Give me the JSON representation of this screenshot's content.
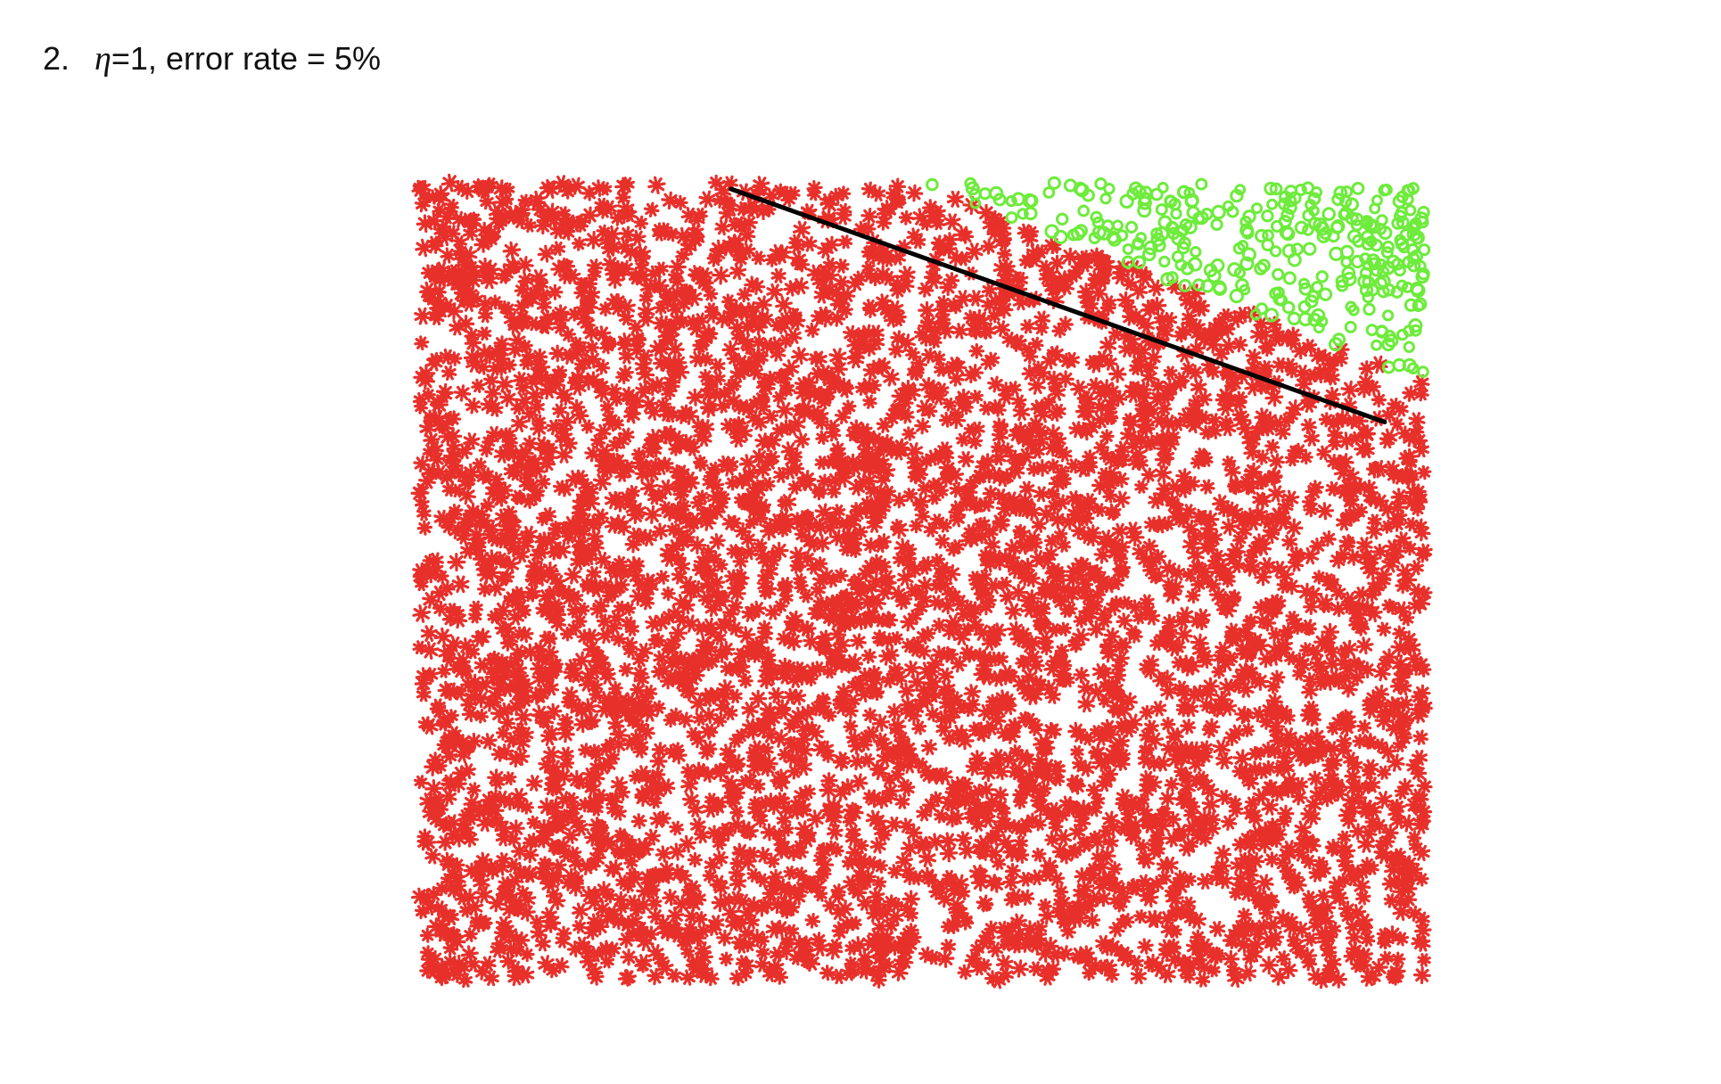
{
  "heading": {
    "number": "2.",
    "eta_symbol": "η",
    "text": "=1, error rate = 5%"
  },
  "colors": {
    "negative": "#e8302b",
    "positive": "#6eeb3c",
    "boundary": "#000000",
    "background": "#ffffff"
  },
  "chart_data": {
    "type": "scatter",
    "title": "",
    "xlabel": "",
    "ylabel": "",
    "xlim": [
      0,
      1
    ],
    "ylim": [
      0,
      1
    ],
    "grid": false,
    "legend": "none",
    "classes": [
      {
        "label": "negative",
        "marker": "asterisk",
        "color": "#e8302b"
      },
      {
        "label": "positive",
        "marker": "circle",
        "color": "#6eeb3c"
      }
    ],
    "true_boundary": {
      "x": [
        0.5,
        1.0
      ],
      "y": [
        1.0,
        0.75
      ]
    },
    "learned_boundary": {
      "x": [
        0.31,
        0.96
      ],
      "y": [
        1.0,
        0.7
      ]
    },
    "error_rate": 0.05
  }
}
